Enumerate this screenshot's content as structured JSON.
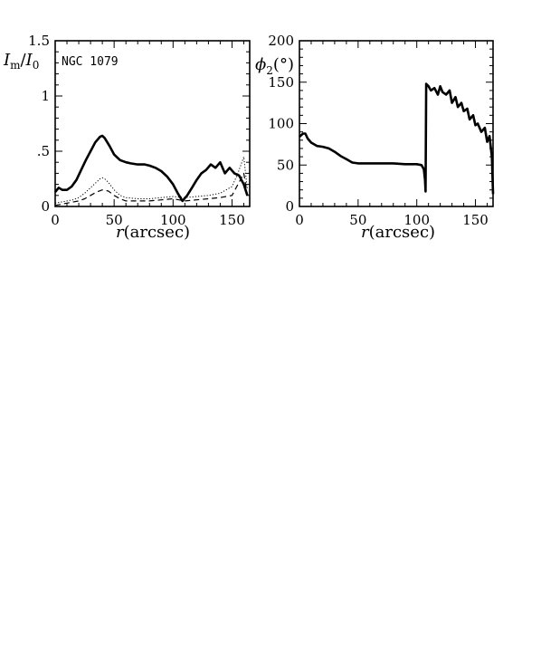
{
  "chart_data": [
    {
      "type": "line",
      "annotation": "NGC 1079",
      "ylabel": "I_m/I_0",
      "ylabel_parts": {
        "I1": "I",
        "sub1": "m",
        "slash": "/",
        "I2": "I",
        "sub2": "0"
      },
      "xlabel": "r(arcsec)",
      "xlabel_parts": {
        "var": "r",
        "rest": "(arcsec)"
      },
      "xlim": [
        0,
        165
      ],
      "ylim": [
        0,
        1.5
      ],
      "xticks": [
        0,
        50,
        100,
        150
      ],
      "xtick_labels": [
        "0",
        "50",
        "100",
        "150"
      ],
      "yticks": [
        0,
        0.5,
        1,
        1.5
      ],
      "ytick_labels": [
        "0",
        ".5",
        "1",
        "1.5"
      ],
      "series": [
        {
          "style": "thick-solid",
          "x": [
            0,
            3,
            6,
            10,
            14,
            18,
            22,
            26,
            30,
            34,
            38,
            40,
            42,
            46,
            50,
            55,
            60,
            64,
            70,
            76,
            80,
            85,
            90,
            95,
            100,
            104,
            108,
            112,
            116,
            120,
            124,
            128,
            132,
            136,
            140,
            144,
            148,
            152,
            156,
            160,
            163
          ],
          "y": [
            0.13,
            0.17,
            0.15,
            0.15,
            0.18,
            0.24,
            0.33,
            0.42,
            0.5,
            0.58,
            0.63,
            0.64,
            0.62,
            0.55,
            0.47,
            0.42,
            0.4,
            0.39,
            0.38,
            0.38,
            0.37,
            0.35,
            0.32,
            0.27,
            0.2,
            0.12,
            0.05,
            0.1,
            0.17,
            0.24,
            0.3,
            0.33,
            0.38,
            0.35,
            0.4,
            0.3,
            0.35,
            0.3,
            0.28,
            0.2,
            0.1
          ]
        },
        {
          "style": "dotted",
          "x": [
            0,
            5,
            10,
            15,
            20,
            25,
            30,
            35,
            38,
            40,
            42,
            45,
            50,
            55,
            60,
            70,
            80,
            90,
            100,
            110,
            120,
            130,
            140,
            150,
            155,
            160,
            163
          ],
          "y": [
            0.03,
            0.04,
            0.05,
            0.06,
            0.08,
            0.12,
            0.17,
            0.22,
            0.25,
            0.26,
            0.25,
            0.22,
            0.15,
            0.1,
            0.08,
            0.07,
            0.07,
            0.08,
            0.09,
            0.08,
            0.09,
            0.1,
            0.12,
            0.18,
            0.3,
            0.45,
            0.15
          ]
        },
        {
          "style": "dashed",
          "x": [
            0,
            5,
            10,
            15,
            20,
            25,
            30,
            35,
            40,
            45,
            50,
            55,
            60,
            70,
            80,
            90,
            100,
            110,
            120,
            130,
            140,
            150,
            155,
            160,
            163
          ],
          "y": [
            0.01,
            0.02,
            0.03,
            0.04,
            0.05,
            0.07,
            0.1,
            0.13,
            0.15,
            0.14,
            0.1,
            0.07,
            0.05,
            0.05,
            0.05,
            0.06,
            0.07,
            0.05,
            0.06,
            0.07,
            0.08,
            0.1,
            0.2,
            0.3,
            0.1
          ]
        }
      ]
    },
    {
      "type": "line",
      "ylabel": "ϕ2(°)",
      "ylabel_parts": {
        "phi": "ϕ",
        "sub": "2",
        "unit": "(°)"
      },
      "xlabel": "r(arcsec)",
      "xlabel_parts": {
        "var": "r",
        "rest": "(arcsec)"
      },
      "xlim": [
        0,
        165
      ],
      "ylim": [
        0,
        200
      ],
      "xticks": [
        0,
        50,
        100,
        150
      ],
      "xtick_labels": [
        "0",
        "50",
        "100",
        "150"
      ],
      "yticks": [
        0,
        50,
        100,
        150,
        200
      ],
      "ytick_labels": [
        "0",
        "50",
        "100",
        "150",
        "200"
      ],
      "series": [
        {
          "style": "thick-solid",
          "x": [
            0,
            3,
            5,
            7,
            10,
            15,
            20,
            25,
            30,
            35,
            40,
            45,
            50,
            60,
            70,
            80,
            90,
            100,
            104,
            106,
            107,
            107.5,
            108,
            110,
            112,
            115,
            118,
            120,
            122,
            125,
            128,
            130,
            133,
            135,
            138,
            140,
            143,
            145,
            148,
            150,
            152,
            155,
            158,
            160,
            162,
            164,
            165
          ],
          "y": [
            84,
            88,
            88,
            82,
            77,
            73,
            72,
            70,
            66,
            61,
            57,
            53,
            52,
            52,
            52,
            52,
            51,
            51,
            50,
            45,
            32,
            18,
            148,
            145,
            140,
            143,
            135,
            145,
            138,
            135,
            140,
            125,
            132,
            120,
            125,
            115,
            118,
            105,
            110,
            98,
            100,
            90,
            95,
            78,
            85,
            60,
            15
          ]
        }
      ]
    }
  ]
}
